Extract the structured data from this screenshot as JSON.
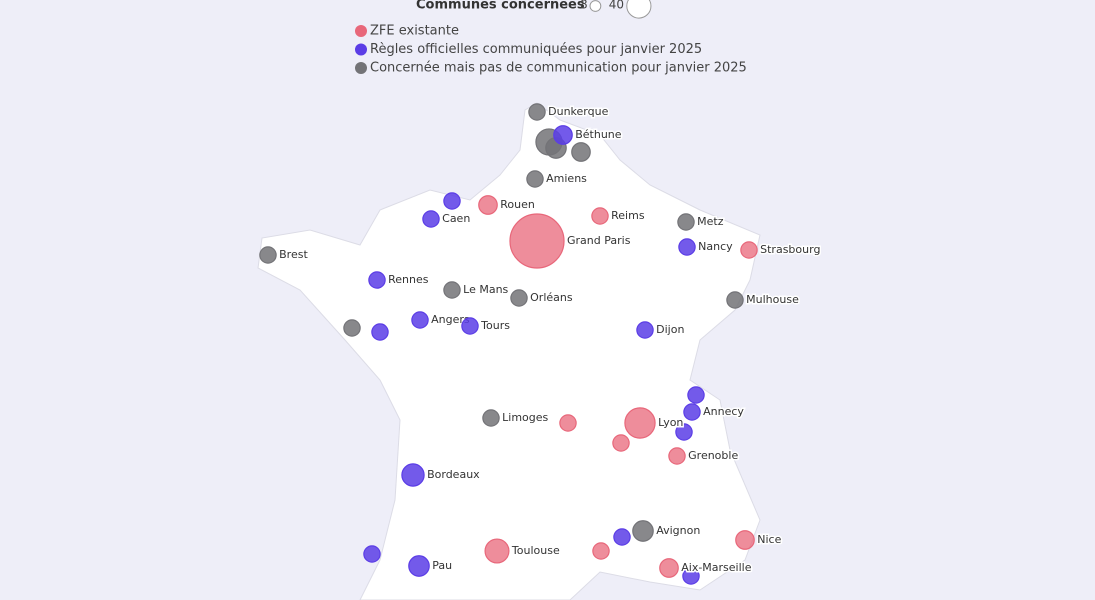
{
  "legend": {
    "size_title": "Communes concernées",
    "size_values": [
      8,
      40
    ],
    "categories": [
      {
        "name": "ZFE existante",
        "color": "#e8677a"
      },
      {
        "name": "Règles officielles communiquées pour janvier 2025",
        "color": "#5b3de6"
      },
      {
        "name": "Concernée mais pas de communication pour janvier 2025",
        "color": "#737377"
      }
    ]
  },
  "points": [
    {
      "label": "Dunkerque",
      "category": 2,
      "communes": 7
    },
    {
      "label": null,
      "category": 2,
      "communes": 18
    },
    {
      "label": null,
      "category": 2,
      "communes": 11
    },
    {
      "label": null,
      "category": 2,
      "communes": 9
    },
    {
      "label": "Amiens",
      "category": 2,
      "communes": 7
    },
    {
      "label": "Metz",
      "category": 2,
      "communes": 7
    },
    {
      "label": "Brest",
      "category": 2,
      "communes": 7
    },
    {
      "label": "Le Mans",
      "category": 2,
      "communes": 7
    },
    {
      "label": "Orléans",
      "category": 2,
      "communes": 7
    },
    {
      "label": "Mulhouse",
      "category": 2,
      "communes": 7
    },
    {
      "label": null,
      "category": 2,
      "communes": 7
    },
    {
      "label": "Limoges",
      "category": 2,
      "communes": 7
    },
    {
      "label": "Avignon",
      "category": 2,
      "communes": 11
    },
    {
      "label": "Béthune",
      "category": 1,
      "communes": 9
    },
    {
      "label": null,
      "category": 1,
      "communes": 7
    },
    {
      "label": "Caen",
      "category": 1,
      "communes": 7
    },
    {
      "label": "Nancy",
      "category": 1,
      "communes": 7
    },
    {
      "label": "Rennes",
      "category": 1,
      "communes": 7
    },
    {
      "label": null,
      "category": 1,
      "communes": 7
    },
    {
      "label": "Angers",
      "category": 1,
      "communes": 7
    },
    {
      "label": "Tours",
      "category": 1,
      "communes": 7
    },
    {
      "label": "Dijon",
      "category": 1,
      "communes": 7
    },
    {
      "label": null,
      "category": 1,
      "communes": 7
    },
    {
      "label": "Annecy",
      "category": 1,
      "communes": 7
    },
    {
      "label": null,
      "category": 1,
      "communes": 7
    },
    {
      "label": "Bordeaux",
      "category": 1,
      "communes": 13
    },
    {
      "label": null,
      "category": 1,
      "communes": 7
    },
    {
      "label": "Pau",
      "category": 1,
      "communes": 11
    },
    {
      "label": null,
      "category": 1,
      "communes": 7
    },
    {
      "label": null,
      "category": 1,
      "communes": 7
    },
    {
      "label": "Rouen",
      "category": 0,
      "communes": 9
    },
    {
      "label": "Reims",
      "category": 0,
      "communes": 7
    },
    {
      "label": "Grand Paris",
      "category": 0,
      "communes": 77
    },
    {
      "label": "Strasbourg",
      "category": 0,
      "communes": 7
    },
    {
      "label": null,
      "category": 0,
      "communes": 7
    },
    {
      "label": "Lyon",
      "category": 0,
      "communes": 24
    },
    {
      "label": null,
      "category": 0,
      "communes": 7
    },
    {
      "label": "Grenoble",
      "category": 0,
      "communes": 7
    },
    {
      "label": "Toulouse",
      "category": 0,
      "communes": 15
    },
    {
      "label": null,
      "category": 0,
      "communes": 7
    },
    {
      "label": "Nice",
      "category": 0,
      "communes": 9
    },
    {
      "label": "Aix-Marseille",
      "category": 0,
      "communes": 9
    }
  ]
}
